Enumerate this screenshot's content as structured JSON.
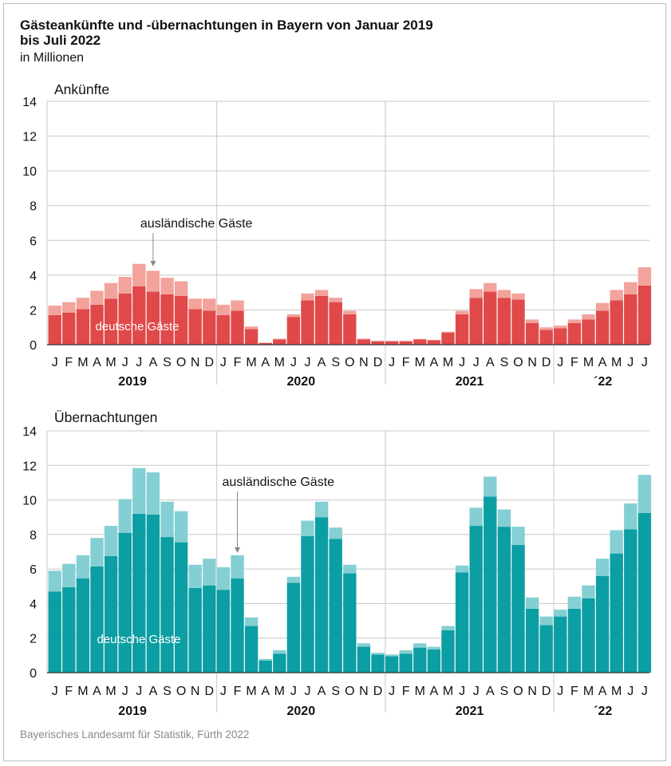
{
  "title": "Gästeankünfte und -übernachtungen in Bayern von Januar 2019\nbis Juli 2022",
  "subtitle": "in Millionen",
  "source": "Bayerisches Landesamt für Statistik, Fürth 2022",
  "colors": {
    "ankuenfte_domestic": "#e0494a",
    "ankuenfte_foreign": "#f2a39c",
    "uebernachtungen_domestic": "#0b9ea3",
    "uebernachtungen_foreign": "#84cfd3",
    "grid": "#c8c8c8"
  },
  "chart_data": [
    {
      "type": "bar",
      "stacked": true,
      "title": "Ankünfte",
      "ylim": [
        0,
        14
      ],
      "yticks": [
        "0",
        "2",
        "4",
        "6",
        "8",
        "10",
        "12",
        "14"
      ],
      "categories": [
        "J",
        "F",
        "M",
        "A",
        "M",
        "J",
        "J",
        "A",
        "S",
        "O",
        "N",
        "D",
        "J",
        "F",
        "M",
        "A",
        "M",
        "J",
        "J",
        "A",
        "S",
        "O",
        "N",
        "D",
        "J",
        "F",
        "M",
        "A",
        "M",
        "J",
        "J",
        "A",
        "S",
        "O",
        "N",
        "D",
        "J",
        "F",
        "M",
        "A",
        "M",
        "J",
        "J"
      ],
      "year_labels": [
        "2019",
        "2020",
        "2021",
        "´22"
      ],
      "annotations": {
        "foreign": "ausländische Gäste",
        "domestic": "deutsche Gäste"
      },
      "series": [
        {
          "name": "deutsche Gäste",
          "values": [
            1.7,
            1.85,
            2.05,
            2.3,
            2.65,
            2.95,
            3.35,
            3.05,
            2.9,
            2.8,
            2.05,
            1.95,
            1.7,
            1.95,
            0.9,
            0.1,
            0.3,
            1.6,
            2.55,
            2.8,
            2.45,
            1.75,
            0.3,
            0.2,
            0.2,
            0.2,
            0.3,
            0.25,
            0.7,
            1.75,
            2.7,
            3.05,
            2.7,
            2.6,
            1.25,
            0.85,
            0.95,
            1.25,
            1.45,
            1.95,
            2.55,
            2.9,
            3.4
          ]
        },
        {
          "name": "ausländische Gäste",
          "values": [
            0.55,
            0.6,
            0.65,
            0.8,
            0.9,
            0.95,
            1.3,
            1.2,
            0.95,
            0.85,
            0.6,
            0.7,
            0.6,
            0.6,
            0.15,
            0.02,
            0.05,
            0.15,
            0.4,
            0.35,
            0.25,
            0.2,
            0.05,
            0.02,
            0.02,
            0.02,
            0.03,
            0.03,
            0.05,
            0.2,
            0.5,
            0.5,
            0.45,
            0.35,
            0.2,
            0.15,
            0.15,
            0.2,
            0.3,
            0.45,
            0.6,
            0.7,
            1.05
          ]
        }
      ]
    },
    {
      "type": "bar",
      "stacked": true,
      "title": "Übernachtungen",
      "ylim": [
        0,
        14
      ],
      "yticks": [
        "0",
        "2",
        "4",
        "6",
        "8",
        "10",
        "12",
        "14"
      ],
      "categories": [
        "J",
        "F",
        "M",
        "A",
        "M",
        "J",
        "J",
        "A",
        "S",
        "O",
        "N",
        "D",
        "J",
        "F",
        "M",
        "A",
        "M",
        "J",
        "J",
        "A",
        "S",
        "O",
        "N",
        "D",
        "J",
        "F",
        "M",
        "A",
        "M",
        "J",
        "J",
        "A",
        "S",
        "O",
        "N",
        "D",
        "J",
        "F",
        "M",
        "A",
        "M",
        "J",
        "J"
      ],
      "year_labels": [
        "2019",
        "2020",
        "2021",
        "´22"
      ],
      "annotations": {
        "foreign": "ausländische Gäste",
        "domestic": "deutsche Gäste"
      },
      "series": [
        {
          "name": "deutsche Gäste",
          "values": [
            4.7,
            4.95,
            5.45,
            6.15,
            6.75,
            8.1,
            9.2,
            9.15,
            7.85,
            7.55,
            4.9,
            5.05,
            4.8,
            5.45,
            2.7,
            0.7,
            1.1,
            5.2,
            7.9,
            9.0,
            7.75,
            5.75,
            1.5,
            1.05,
            0.95,
            1.1,
            1.45,
            1.35,
            2.45,
            5.8,
            8.5,
            10.2,
            8.45,
            7.4,
            3.7,
            2.75,
            3.25,
            3.7,
            4.3,
            5.6,
            6.9,
            8.3,
            9.25
          ]
        },
        {
          "name": "ausländische Gäste",
          "values": [
            1.2,
            1.35,
            1.35,
            1.65,
            1.75,
            1.95,
            2.65,
            2.45,
            2.05,
            1.8,
            1.35,
            1.55,
            1.3,
            1.35,
            0.5,
            0.1,
            0.2,
            0.35,
            0.9,
            0.9,
            0.65,
            0.5,
            0.2,
            0.1,
            0.1,
            0.2,
            0.25,
            0.15,
            0.25,
            0.4,
            1.05,
            1.15,
            1.0,
            1.05,
            0.65,
            0.5,
            0.4,
            0.7,
            0.75,
            1.0,
            1.35,
            1.5,
            2.2
          ]
        }
      ]
    }
  ]
}
